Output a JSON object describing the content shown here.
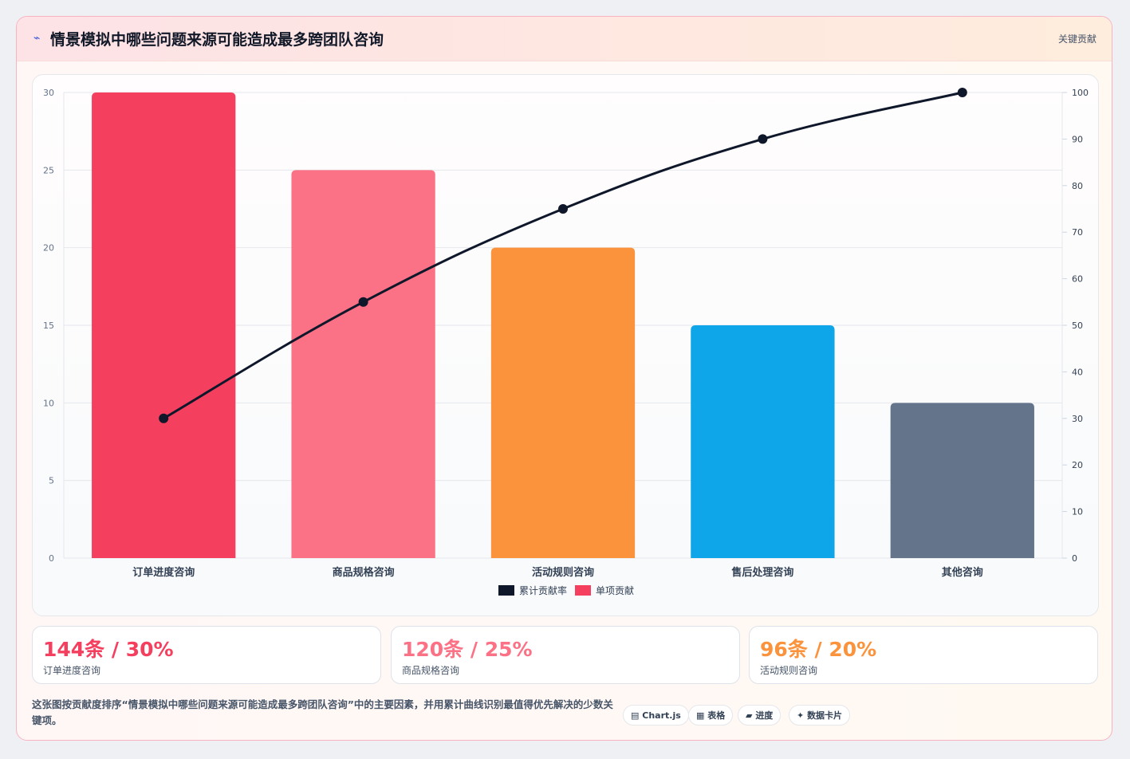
{
  "header": {
    "icon": "lightning-icon",
    "title": "情景模拟中哪些问题来源可能造成最多跨团队咨询",
    "badge": "关键贡献"
  },
  "chart_data": {
    "type": "bar",
    "categories": [
      "订单进度咨询",
      "商品规格咨询",
      "活动规则咨询",
      "售后处理咨询",
      "其他咨询"
    ],
    "series": [
      {
        "name": "单项贡献",
        "type": "bar",
        "axis": "left",
        "values": [
          30,
          25,
          20,
          15,
          10
        ],
        "colors": [
          "#f43f5e",
          "#fb7185",
          "#fb923c",
          "#0ea5e9",
          "#64748b"
        ]
      },
      {
        "name": "累计贡献率",
        "type": "line",
        "axis": "right",
        "values": [
          30,
          55,
          75,
          90,
          100
        ],
        "color": "#0f172a"
      }
    ],
    "ylim_left": [
      0,
      30
    ],
    "yticks_left": [
      "0",
      "5",
      "10",
      "15",
      "20",
      "25",
      "30"
    ],
    "ylim_right": [
      0,
      100
    ],
    "yticks_right": [
      "0",
      "10",
      "20",
      "30",
      "40",
      "50",
      "60",
      "70",
      "80",
      "90",
      "100"
    ],
    "legend": {
      "placement": "bottom-center",
      "items": [
        {
          "label": "累计贡献率",
          "color": "#0f172a"
        },
        {
          "label": "单项贡献",
          "color": "#f43f5e"
        }
      ]
    },
    "grid": true
  },
  "stats": [
    {
      "value": "144条 / 30%",
      "label": "订单进度咨询",
      "color": "#f43f5e"
    },
    {
      "value": "120条 / 25%",
      "label": "商品规格咨询",
      "color": "#fb7185"
    },
    {
      "value": "96条 / 20%",
      "label": "活动规则咨询",
      "color": "#fb923c"
    }
  ],
  "footer": {
    "description": "这张图按贡献度排序“情景模拟中哪些问题来源可能造成最多跨团队咨询”中的主要因素，并用累计曲线识别最值得优先解决的少数关键项。",
    "chips": [
      {
        "icon": "▤",
        "label": "Chart.js"
      },
      {
        "icon": "▦",
        "label": "表格"
      },
      {
        "icon": "▰",
        "label": "进度"
      },
      {
        "icon": "✦",
        "label": "数据卡片"
      }
    ]
  }
}
